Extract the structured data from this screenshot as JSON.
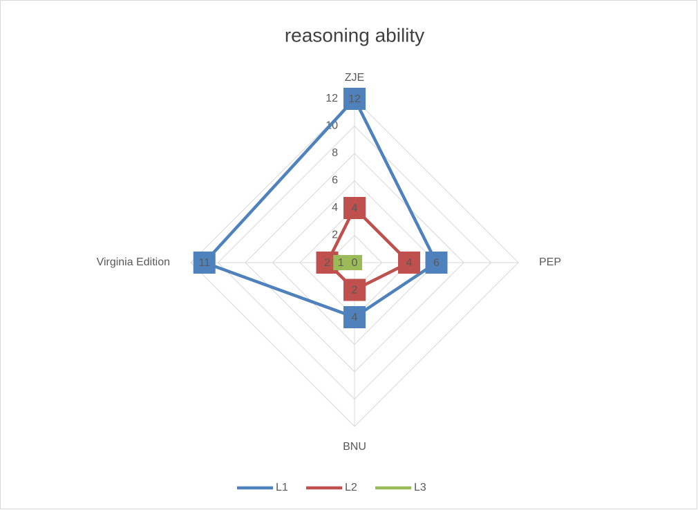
{
  "chart_data": {
    "type": "radar",
    "title": "reasoning ability",
    "categories": [
      "ZJE",
      "PEP",
      "BNU",
      "Virginia Edition"
    ],
    "series": [
      {
        "name": "L1",
        "color": "#4f81bd",
        "values": [
          12,
          6,
          4,
          11
        ]
      },
      {
        "name": "L2",
        "color": "#c0504d",
        "values": [
          4,
          4,
          2,
          2
        ]
      },
      {
        "name": "L3",
        "color": "#9bbb59",
        "values": [
          0,
          0,
          0,
          1
        ]
      }
    ],
    "ylim": [
      0,
      12
    ],
    "yticks": [
      0,
      2,
      4,
      6,
      8,
      10,
      12
    ],
    "grid": true,
    "legend": "bottom"
  }
}
